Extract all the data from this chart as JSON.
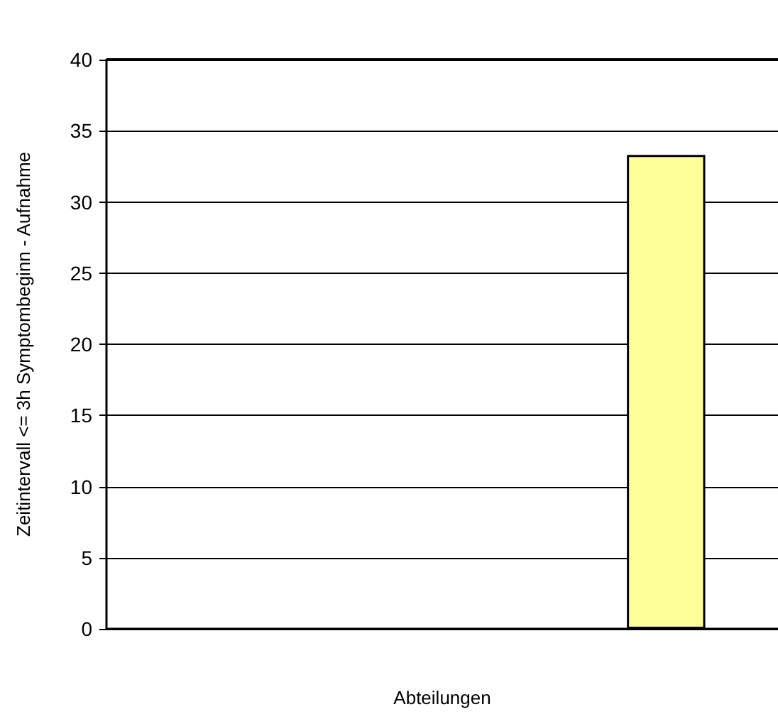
{
  "chart_data": {
    "type": "bar",
    "xlabel": "Abteilungen",
    "ylabel": "Zeitintervall <= 3h Symptombeginn - Aufnahme",
    "categories": [
      null,
      null,
      null
    ],
    "values": [
      null,
      null,
      33.3
    ],
    "color": "#ffff99",
    "ylim": [
      0,
      40
    ],
    "yticks": [
      0,
      5,
      10,
      15,
      20,
      25,
      30,
      35,
      40
    ],
    "grid": "y"
  }
}
